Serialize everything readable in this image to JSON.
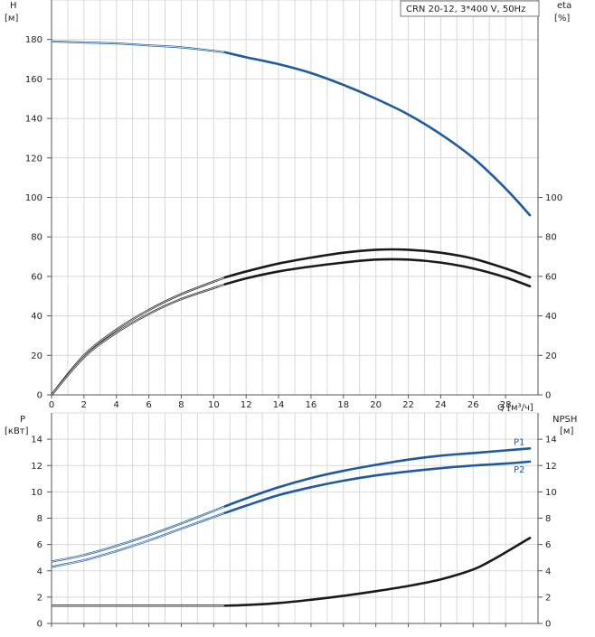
{
  "legend": "CRN 20-12, 3*400 V, 50Hz",
  "chart_data": [
    {
      "type": "line",
      "name": "head-efficiency",
      "xlabel": "Q [м³/ч]",
      "x_ticks": [
        0,
        2,
        4,
        6,
        8,
        10,
        12,
        14,
        16,
        18,
        20,
        22,
        24,
        26,
        28
      ],
      "xlim": [
        0,
        30
      ],
      "ylabel_left_title": "H",
      "ylabel_left_unit": "[м]",
      "ylabel_right_title": "eta",
      "ylabel_right_unit": "[%]",
      "ylim": [
        0,
        200
      ],
      "y_ticks_left": [
        0,
        20,
        40,
        60,
        80,
        100,
        120,
        140,
        160,
        180
      ],
      "y_ticks_right": [
        0,
        20,
        40,
        60,
        80,
        100
      ],
      "series": [
        {
          "name": "H",
          "color": "#1f5aa0",
          "split_x": 10.7,
          "x": [
            0,
            2,
            4,
            6,
            8,
            10.7,
            12,
            14,
            16,
            18,
            20,
            22,
            24,
            26,
            28,
            29.5
          ],
          "y": [
            179,
            178.5,
            178,
            177,
            176,
            173.5,
            171,
            167.5,
            163,
            157,
            150,
            142,
            132,
            120,
            104.5,
            91
          ]
        },
        {
          "name": "eta-upper",
          "color": "#1a1a1a",
          "split_x": 10.7,
          "x": [
            0,
            2,
            4,
            6,
            8,
            10.7,
            12,
            14,
            16,
            18,
            20,
            22,
            24,
            26,
            28,
            29.5
          ],
          "y": [
            0,
            20,
            33,
            43,
            51,
            59.5,
            62.5,
            66.5,
            69.5,
            72,
            73.5,
            73.5,
            72,
            69,
            64,
            59.5
          ]
        },
        {
          "name": "eta-lower",
          "color": "#1a1a1a",
          "split_x": 10.7,
          "x": [
            0,
            2,
            4,
            6,
            8,
            10.7,
            12,
            14,
            16,
            18,
            20,
            22,
            24,
            26,
            28,
            29.5
          ],
          "y": [
            0,
            19,
            31.5,
            41,
            48.5,
            56,
            59,
            62.5,
            65,
            67,
            68.5,
            68.5,
            67,
            64,
            59.5,
            55
          ]
        }
      ]
    },
    {
      "type": "line",
      "name": "power-npsh",
      "ylabel_left_title": "P",
      "ylabel_left_unit": "[кВт]",
      "ylabel_right_title": "NPSH",
      "ylabel_right_unit": "[м]",
      "xlim": [
        0,
        30
      ],
      "ylim": [
        0,
        16
      ],
      "y_ticks_left": [
        0,
        2,
        4,
        6,
        8,
        10,
        12,
        14
      ],
      "y_ticks_right": [
        0,
        2,
        4,
        6,
        8,
        10,
        12,
        14
      ],
      "series": [
        {
          "name": "P1",
          "label": "P1",
          "color": "#1f5aa0",
          "split_x": 10.7,
          "x": [
            0,
            2,
            4,
            6,
            8,
            10.7,
            12,
            14,
            16,
            18,
            20,
            22,
            24,
            26,
            28,
            29.5
          ],
          "y": [
            4.7,
            5.2,
            5.9,
            6.7,
            7.6,
            8.9,
            9.5,
            10.35,
            11.05,
            11.6,
            12.05,
            12.45,
            12.75,
            12.95,
            13.15,
            13.3
          ]
        },
        {
          "name": "P2",
          "label": "P2",
          "color": "#1f5aa0",
          "split_x": 10.7,
          "x": [
            0,
            2,
            4,
            6,
            8,
            10.7,
            12,
            14,
            16,
            18,
            20,
            22,
            24,
            26,
            28,
            29.5
          ],
          "y": [
            4.3,
            4.8,
            5.5,
            6.3,
            7.2,
            8.4,
            8.95,
            9.75,
            10.35,
            10.85,
            11.25,
            11.55,
            11.8,
            12.0,
            12.15,
            12.3
          ]
        },
        {
          "name": "NPSH",
          "color": "#1a1a1a",
          "split_x": 10.7,
          "x": [
            0,
            2,
            4,
            6,
            8,
            10.7,
            12,
            14,
            16,
            18,
            20,
            22,
            24,
            26,
            27,
            28,
            29.5
          ],
          "y": [
            1.35,
            1.35,
            1.35,
            1.35,
            1.35,
            1.35,
            1.4,
            1.55,
            1.8,
            2.1,
            2.45,
            2.85,
            3.35,
            4.1,
            4.7,
            5.4,
            6.5
          ]
        }
      ]
    }
  ]
}
